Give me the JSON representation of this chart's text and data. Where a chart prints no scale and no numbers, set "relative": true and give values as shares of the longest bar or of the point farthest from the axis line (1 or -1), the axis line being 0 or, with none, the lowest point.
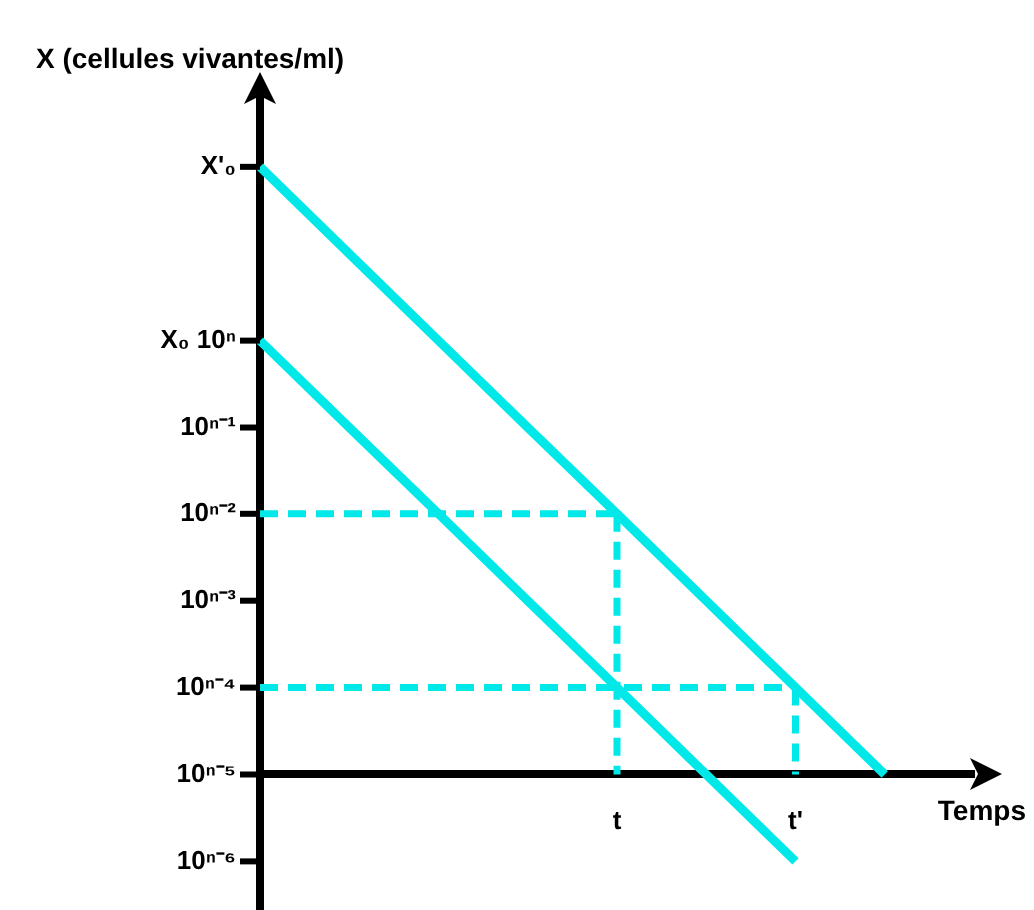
{
  "chart_data": {
    "type": "line",
    "relative": true,
    "xlabel": "Temps",
    "ylabel": "X (cellules vivantes/ml)",
    "categories": [
      null,
      null,
      null,
      null,
      "t",
      null,
      "t'",
      null,
      null
    ],
    "series": [
      {
        "color": "#00e8e8",
        "values": [
          1,
          0.857,
          0.714,
          0.571,
          0.429,
          0.286,
          0.143,
          0,
          null
        ],
        "line_style": "solid"
      },
      {
        "color": "#00e8e8",
        "values": [
          0.714,
          0.571,
          0.429,
          0.286,
          0.143,
          0,
          -0.143,
          null,
          null
        ],
        "line_style": "solid"
      },
      {
        "color": "#00e8e8",
        "values": [
          0.429,
          0.429,
          0.429,
          0.429,
          0.429,
          null,
          null,
          null,
          null
        ],
        "line_style": "dashed"
      },
      {
        "color": "#00e8e8",
        "values": [
          0.143,
          0.143,
          0.143,
          0.143,
          0.143,
          0.143,
          0.143,
          null,
          null
        ],
        "line_style": "dashed"
      },
      {
        "color": "#00e8e8",
        "x": [
          "t",
          "t"
        ],
        "values": [
          0.429,
          0
        ],
        "line_style": "dashed"
      },
      {
        "color": "#00e8e8",
        "x": [
          "t'",
          "t'"
        ],
        "values": [
          0.143,
          0
        ],
        "line_style": "dashed"
      }
    ],
    "annotations": [
      "X'₀",
      "X₀ 10ⁿ",
      "10ⁿ⁻¹",
      "10ⁿ⁻²",
      "10ⁿ⁻³",
      "10ⁿ⁻⁴",
      "10ⁿ⁻⁵",
      "10ⁿ⁻⁶"
    ],
    "marker": "none",
    "legend": false
  }
}
